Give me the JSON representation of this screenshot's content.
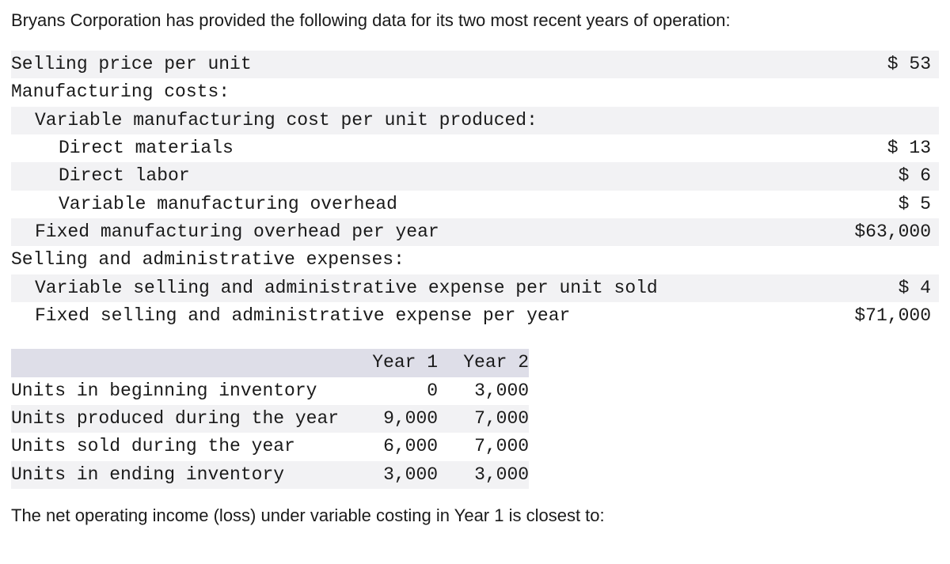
{
  "intro": "Bryans Corporation has provided the following data for its two most recent years of operation:",
  "costs": {
    "rows": [
      {
        "label": "Selling price per unit",
        "value": "$ 53",
        "indent": 0,
        "shade": true
      },
      {
        "label": "Manufacturing costs:",
        "value": "",
        "indent": 0,
        "shade": false
      },
      {
        "label": "Variable manufacturing cost per unit produced:",
        "value": "",
        "indent": 1,
        "shade": true
      },
      {
        "label": "Direct materials",
        "value": "$ 13",
        "indent": 2,
        "shade": false
      },
      {
        "label": "Direct labor",
        "value": "$ 6",
        "indent": 2,
        "shade": true
      },
      {
        "label": "Variable manufacturing overhead",
        "value": "$ 5",
        "indent": 2,
        "shade": false
      },
      {
        "label": "Fixed manufacturing overhead per year",
        "value": "$63,000",
        "indent": 1,
        "shade": true
      },
      {
        "label": "Selling and administrative expenses:",
        "value": "",
        "indent": 0,
        "shade": false
      },
      {
        "label": "Variable selling and administrative expense per unit sold",
        "value": "$ 4",
        "indent": 1,
        "shade": true
      },
      {
        "label": "Fixed selling and administrative expense per year",
        "value": "$71,000",
        "indent": 1,
        "shade": false
      }
    ]
  },
  "units": {
    "headers": {
      "label": "",
      "c1": "Year 1",
      "c2": "Year 2"
    },
    "rows": [
      {
        "label": "Units in beginning inventory",
        "c1": "0",
        "c2": "3,000",
        "alt": false
      },
      {
        "label": "Units produced during the year",
        "c1": "9,000",
        "c2": "7,000",
        "alt": true
      },
      {
        "label": "Units sold during the year",
        "c1": "6,000",
        "c2": "7,000",
        "alt": false
      },
      {
        "label": "Units in ending inventory",
        "c1": "3,000",
        "c2": "3,000",
        "alt": true
      }
    ]
  },
  "question": "The net operating income (loss) under variable costing in Year 1 is closest to:"
}
